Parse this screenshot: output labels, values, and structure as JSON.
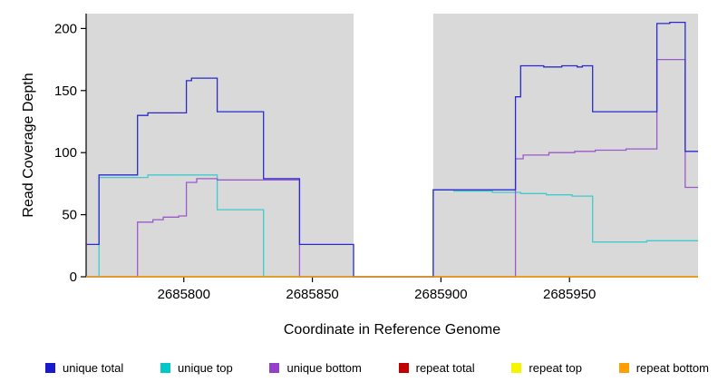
{
  "chart_data": {
    "type": "line",
    "subtype": "step",
    "title": "",
    "xlabel": "Coordinate in Reference Genome",
    "ylabel": "Read Coverage Depth",
    "xlim": [
      2685762,
      2686000
    ],
    "ylim": [
      0,
      212
    ],
    "x_ticks": [
      2685800,
      2685850,
      2685900,
      2685950
    ],
    "y_ticks": [
      0,
      50,
      100,
      150,
      200
    ],
    "grid": false,
    "legend_position": "bottom",
    "panel_color": "#d9d9d9",
    "shaded_regions": [
      [
        2685762,
        2685866
      ],
      [
        2685897,
        2686000
      ]
    ],
    "series": [
      {
        "name": "repeat total",
        "color": "#c00000",
        "steps": [
          [
            2685762,
            0
          ]
        ]
      },
      {
        "name": "repeat top",
        "color": "#f5f500",
        "steps": [
          [
            2685762,
            0
          ]
        ]
      },
      {
        "name": "unique top",
        "color": "#3ecccc",
        "steps": [
          [
            2685762,
            0
          ],
          [
            2685767,
            80
          ],
          [
            2685786,
            82
          ],
          [
            2685813,
            54
          ],
          [
            2685831,
            0
          ],
          [
            2685897,
            70
          ],
          [
            2685905,
            69
          ],
          [
            2685920,
            68
          ],
          [
            2685931,
            67
          ],
          [
            2685941,
            66
          ],
          [
            2685951,
            65
          ],
          [
            2685959,
            28
          ],
          [
            2685980,
            29
          ]
        ]
      },
      {
        "name": "unique bottom",
        "color": "#9c59cd",
        "steps": [
          [
            2685762,
            0
          ],
          [
            2685782,
            44
          ],
          [
            2685788,
            46
          ],
          [
            2685792,
            48
          ],
          [
            2685798,
            49
          ],
          [
            2685801,
            76
          ],
          [
            2685805,
            79
          ],
          [
            2685813,
            78
          ],
          [
            2685845,
            0
          ],
          [
            2685929,
            95
          ],
          [
            2685932,
            98
          ],
          [
            2685942,
            100
          ],
          [
            2685952,
            101
          ],
          [
            2685960,
            102
          ],
          [
            2685972,
            103
          ],
          [
            2685984,
            175
          ],
          [
            2685995,
            72
          ]
        ]
      },
      {
        "name": "unique total",
        "color": "#2a2ad0",
        "steps": [
          [
            2685762,
            26
          ],
          [
            2685767,
            82
          ],
          [
            2685782,
            130
          ],
          [
            2685786,
            132
          ],
          [
            2685801,
            158
          ],
          [
            2685803,
            160
          ],
          [
            2685813,
            133
          ],
          [
            2685831,
            79
          ],
          [
            2685845,
            26
          ],
          [
            2685866,
            0
          ],
          [
            2685897,
            70
          ],
          [
            2685929,
            145
          ],
          [
            2685931,
            170
          ],
          [
            2685940,
            169
          ],
          [
            2685947,
            170
          ],
          [
            2685953,
            169
          ],
          [
            2685955,
            170
          ],
          [
            2685959,
            133
          ],
          [
            2685984,
            204
          ],
          [
            2685989,
            205
          ],
          [
            2685995,
            101
          ]
        ]
      },
      {
        "name": "repeat bottom",
        "color": "#ff9e00",
        "steps": [
          [
            2685762,
            0
          ]
        ]
      }
    ],
    "legend": [
      {
        "label": "unique total",
        "color": "#1a1acd"
      },
      {
        "label": "unique top",
        "color": "#00c8c8"
      },
      {
        "label": "unique bottom",
        "color": "#9440c8"
      },
      {
        "label": "repeat total",
        "color": "#c00000"
      },
      {
        "label": "repeat top",
        "color": "#f5f500"
      },
      {
        "label": "repeat bottom",
        "color": "#ff9e00"
      }
    ]
  }
}
